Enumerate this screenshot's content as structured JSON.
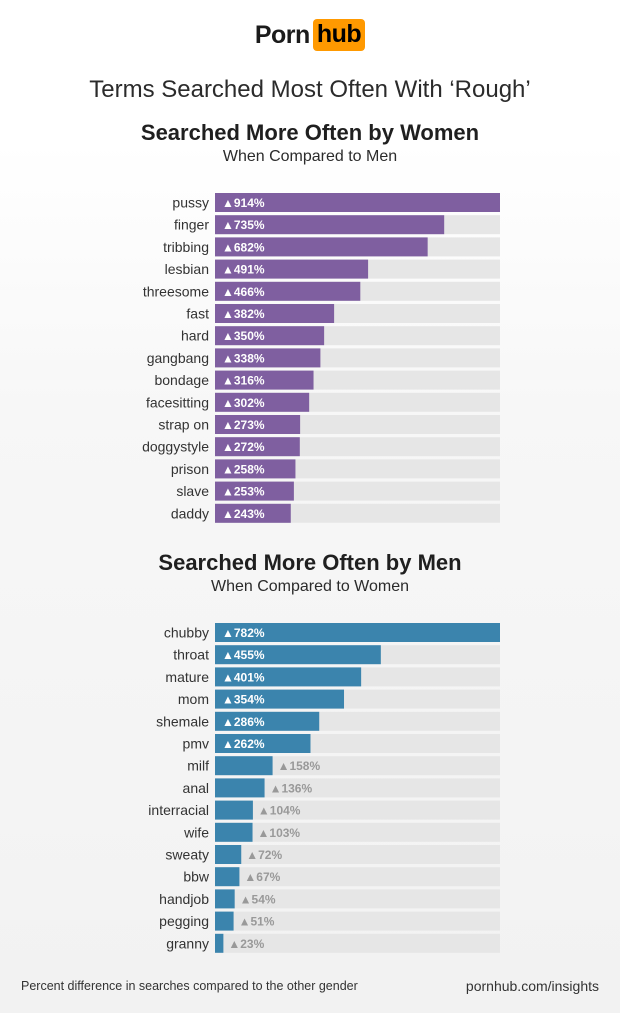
{
  "brand": {
    "word": "Porn",
    "badge": "hub",
    "badge_color": "#ff9900"
  },
  "title": "Terms Searched Most Often With ‘Rough’",
  "colors": {
    "women": "#7f5fa0",
    "men": "#3b84ad",
    "track": "#e6e6e6",
    "label_outside": "#999999"
  },
  "footer": {
    "note": "Percent difference in searches compared to the other gender",
    "site": "pornhub.com/insights"
  },
  "chart_data": [
    {
      "type": "bar",
      "orientation": "horizontal",
      "title": "Searched More Often by Women",
      "subtitle": "When Compared to Men",
      "color": "#7f5fa0",
      "categories": [
        "pussy",
        "finger",
        "tribbing",
        "lesbian",
        "threesome",
        "fast",
        "hard",
        "gangbang",
        "bondage",
        "facesitting",
        "strap on",
        "doggystyle",
        "prison",
        "slave",
        "daddy"
      ],
      "values": [
        914,
        735,
        682,
        491,
        466,
        382,
        350,
        338,
        316,
        302,
        273,
        272,
        258,
        253,
        243
      ],
      "labels": [
        "▲914%",
        "▲735%",
        "▲682%",
        "▲491%",
        "▲466%",
        "▲382%",
        "▲350%",
        "▲338%",
        "▲316%",
        "▲302%",
        "▲273%",
        "▲272%",
        "▲258%",
        "▲253%",
        "▲243%"
      ],
      "xlim": [
        0,
        914
      ],
      "grid": false
    },
    {
      "type": "bar",
      "orientation": "horizontal",
      "title": "Searched More Often by Men",
      "subtitle": "When Compared to Women",
      "color": "#3b84ad",
      "categories": [
        "chubby",
        "throat",
        "mature",
        "mom",
        "shemale",
        "pmv",
        "milf",
        "anal",
        "interracial",
        "wife",
        "sweaty",
        "bbw",
        "handjob",
        "pegging",
        "granny"
      ],
      "values": [
        782,
        455,
        401,
        354,
        286,
        262,
        158,
        136,
        104,
        103,
        72,
        67,
        54,
        51,
        23
      ],
      "labels": [
        "▲782%",
        "▲455%",
        "▲401%",
        "▲354%",
        "▲286%",
        "▲262%",
        "▲158%",
        "▲136%",
        "▲104%",
        "▲103%",
        "▲72%",
        "▲67%",
        "▲54%",
        "▲51%",
        "▲23%"
      ],
      "xlim": [
        0,
        782
      ],
      "grid": false
    }
  ]
}
